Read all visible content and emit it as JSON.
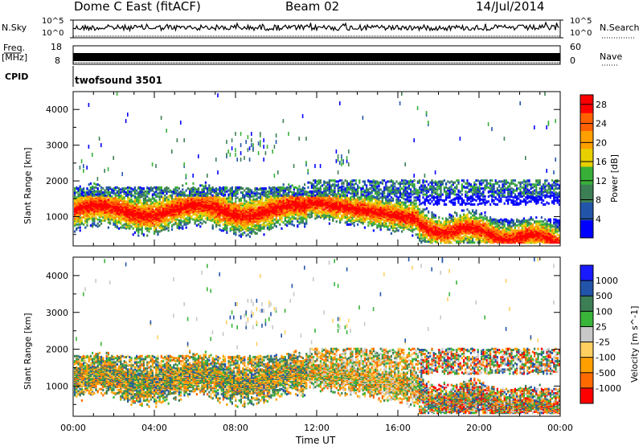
{
  "header": {
    "station": "Dome C East (fitACF)",
    "beam": "Beam 02",
    "date": "14/Jul/2014"
  },
  "noise_panel": {
    "left_label": "N.Sky",
    "left_ticks": [
      "10^5",
      "10^0"
    ],
    "right_label": "N.Search",
    "right_ticks": [
      "10^5",
      "10^0"
    ]
  },
  "freq_panel": {
    "left_label_top": "Freq.",
    "left_label_bottom": "[MHz]",
    "left_ticks": [
      "18",
      "8"
    ],
    "right_label": "Nave",
    "right_ticks": [
      "60",
      "0"
    ]
  },
  "cpid_panel": {
    "label": "CPID",
    "program": "twofsound  3501"
  },
  "colors": {
    "power_scale": [
      "#0000ff",
      "#2255aa",
      "#3d7f55",
      "#38b038",
      "#e8d000",
      "#ff9f00",
      "#ff6000",
      "#ff0000"
    ],
    "velocity_scale": [
      "#ff0000",
      "#ff6a00",
      "#ff9f00",
      "#ffd060",
      "#c8c8c8",
      "#39b539",
      "#3d7f55",
      "#2255aa",
      "#1a1aff"
    ]
  },
  "chart_data": [
    {
      "type": "heatmap",
      "name": "power",
      "xlabel": "Time UT",
      "ylabel": "Slant Range [km]",
      "x_ticks": [
        "00:00",
        "04:00",
        "08:00",
        "12:00",
        "16:00",
        "20:00",
        "00:00"
      ],
      "xlim_hours": [
        0,
        24
      ],
      "y_ticks": [
        1000,
        2000,
        3000,
        4000
      ],
      "ylim": [
        180,
        4500
      ],
      "colorbar_label": "Power [dB]",
      "colorbar_ticks": [
        4,
        8,
        12,
        16,
        20,
        24,
        28
      ],
      "colorbar_range": [
        0,
        30
      ]
    },
    {
      "type": "heatmap",
      "name": "velocity",
      "xlabel": "Time UT",
      "ylabel": "Slant Range [km]",
      "x_ticks": [
        "00:00",
        "04:00",
        "08:00",
        "12:00",
        "16:00",
        "20:00",
        "00:00"
      ],
      "xlim_hours": [
        0,
        24
      ],
      "y_ticks": [
        1000,
        2000,
        3000,
        4000
      ],
      "ylim": [
        180,
        4500
      ],
      "colorbar_label": "Velocity [m s^-1]",
      "colorbar_ticks": [
        1000,
        500,
        100,
        25,
        -25,
        -100,
        -500,
        -1000
      ]
    }
  ]
}
